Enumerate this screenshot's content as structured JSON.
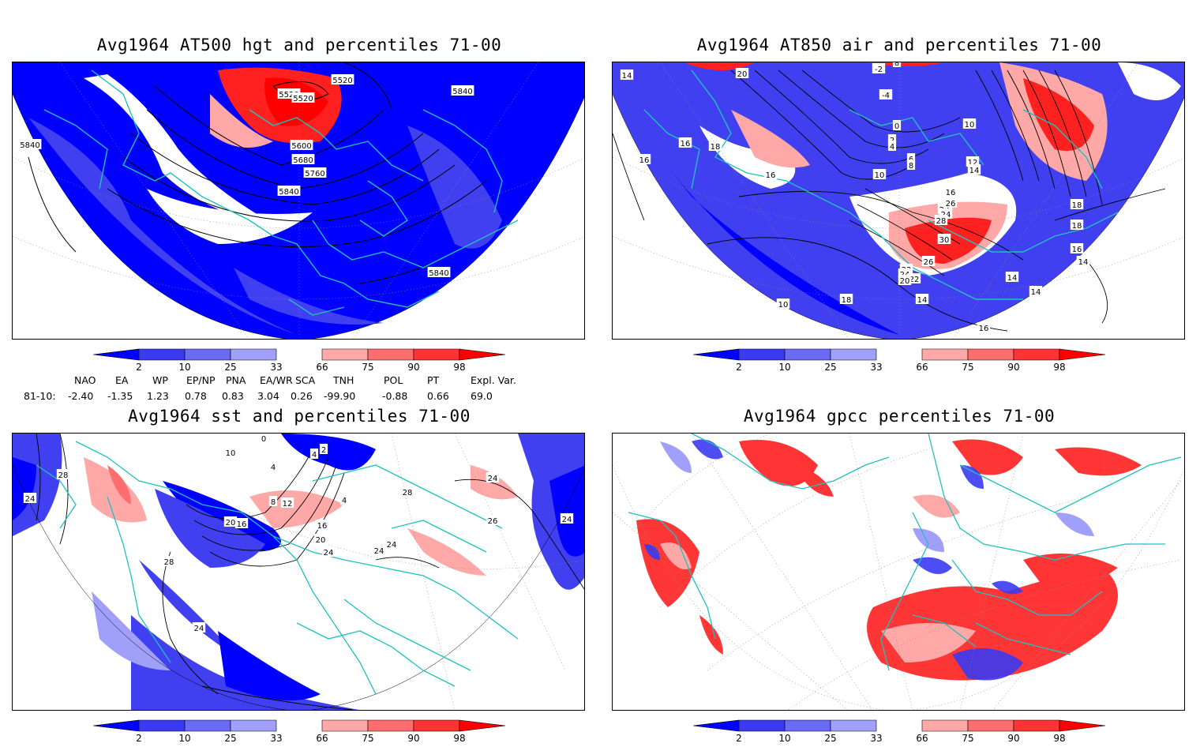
{
  "panels": [
    {
      "id": "p1",
      "title": "Avg1964 AT500 hgt and percentiles 71-00",
      "contour_labels": [
        "5520",
        "5520",
        "5520",
        "5840",
        "5840",
        "5600",
        "5680",
        "5760",
        "5840",
        "5840"
      ]
    },
    {
      "id": "p2",
      "title": "Avg1964 AT850 air and percentiles 71-00",
      "contour_labels": [
        "14",
        "20",
        "-2",
        "8",
        "-4",
        "0",
        "2",
        "4",
        "6",
        "8",
        "10",
        "16",
        "18",
        "16",
        "16",
        "10",
        "12",
        "14",
        "16",
        "20",
        "22",
        "24",
        "28",
        "26",
        "28",
        "30",
        "26",
        "22",
        "24",
        "22",
        "20",
        "18",
        "18",
        "16",
        "14",
        "14",
        "14",
        "14",
        "16",
        "18",
        "14",
        "10"
      ]
    },
    {
      "id": "p3",
      "title": "Avg1964 sst and percentiles 71-00",
      "contour_labels": [
        "28",
        "24",
        "10",
        "0",
        "2",
        "4",
        "4",
        "8",
        "12",
        "16",
        "20",
        "28",
        "24",
        "24",
        "24",
        "28",
        "24",
        "26",
        "24",
        "24",
        "16",
        "20",
        "6",
        "4"
      ]
    },
    {
      "id": "p4",
      "title": "Avg1964 gpcc percentiles 71-00",
      "contour_labels": []
    }
  ],
  "colorbar": {
    "ticks": [
      "2",
      "10",
      "25",
      "33",
      "66",
      "75",
      "90",
      "98"
    ],
    "colors": [
      "#0000ff",
      "#3a3af0",
      "#6a6af5",
      "#a0a0fa",
      "#ffffff",
      "#ffa8a8",
      "#ff6e6e",
      "#ff3333",
      "#ff0000"
    ]
  },
  "indices": {
    "headers": [
      "NAO",
      "EA",
      "WP",
      "EP/NP",
      "PNA",
      "EA/WR",
      "SCA",
      "TNH",
      "POL",
      "PT",
      "Expl. Var."
    ],
    "row_label": "81-10:",
    "values": [
      "-2.40",
      "-1.35",
      "1.23",
      "0.78",
      "0.83",
      "3.04",
      "0.26",
      "-99.90",
      "-0.88",
      "0.66",
      "69.0"
    ]
  },
  "colors": {
    "deep_blue": "#0000ff",
    "mid_blue": "#4040f0",
    "light_blue": "#a0a0fa",
    "red": "#ff2020",
    "pink": "#ffa8a8",
    "coast": "#20c0c0",
    "contour": "#000000"
  }
}
